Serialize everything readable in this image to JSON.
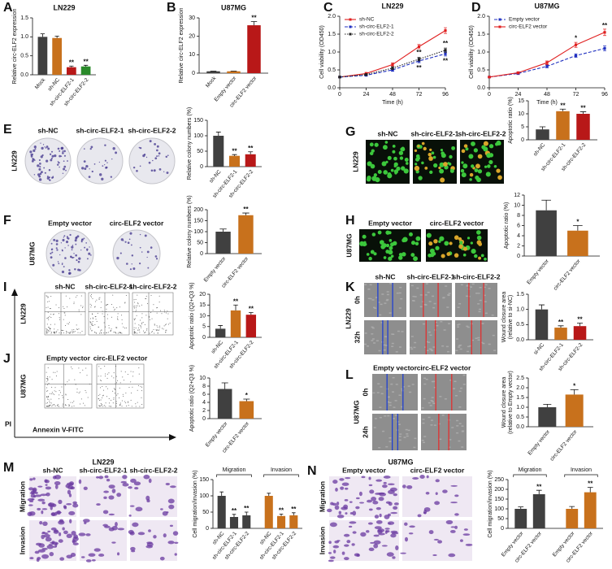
{
  "chart_data": [
    {
      "type": "bar",
      "title": "LN229",
      "ylabel": "Relative circ-ELF2 expression",
      "categories": [
        "Mock",
        "sh-NC",
        "sh-circ-ELF2-1",
        "sh-circ-ELF2-2"
      ],
      "values": [
        1.0,
        0.97,
        0.2,
        0.22
      ],
      "errors": [
        0.08,
        0.05,
        0.03,
        0.03
      ],
      "annotations": [
        null,
        null,
        "**",
        "**"
      ],
      "colors": [
        "#404040",
        "#c8711c",
        "#b81818",
        "#2a8a2a"
      ],
      "ylim": [
        0,
        1.5
      ],
      "yticks": [
        {
          "value": 0,
          "label": "0.0"
        },
        0.5,
        {
          "value": 1,
          "label": "1.0"
        },
        1.5
      ]
    },
    {
      "type": "bar",
      "title": "U87MG",
      "ylabel": "Relative circ-ELF2 expression",
      "categories": [
        "Mock",
        "Empty vector",
        "circ-ELF2 vector"
      ],
      "values": [
        1,
        1,
        26
      ],
      "errors": [
        0.15,
        0.15,
        2
      ],
      "annotations": [
        null,
        null,
        "**"
      ],
      "colors": [
        "#404040",
        "#c8711c",
        "#b81818"
      ],
      "ylim": [
        0,
        30
      ],
      "yticks": [
        0,
        10,
        20,
        30
      ]
    },
    {
      "type": "line",
      "title": "LN229",
      "xlabel": "Time (h)",
      "ylabel": "Cell viability (OD450)",
      "legend": "upper left",
      "x": [
        0,
        24,
        48,
        72,
        96
      ],
      "xlim": [
        0,
        96
      ],
      "xticks": [
        0,
        24,
        48,
        72,
        96
      ],
      "ylim": [
        0,
        2
      ],
      "yticks": [
        {
          "value": 0,
          "label": "0.0"
        },
        0.5,
        {
          "value": 1,
          "label": "1.0"
        },
        1.5,
        {
          "value": 2,
          "label": "2.0"
        }
      ],
      "series": [
        {
          "name": "sh-NC",
          "color": "#e02020",
          "linestyle": "solid",
          "values": [
            0.3,
            0.4,
            0.65,
            1.15,
            1.6
          ],
          "errors": [
            0.02,
            0.03,
            0.05,
            0.06,
            0.08
          ]
        },
        {
          "name": "sh-circ-ELF2-1",
          "color": "#2030c0",
          "linestyle": "dashed",
          "values": [
            0.3,
            0.35,
            0.5,
            0.75,
            0.95
          ],
          "errors": [
            0.02,
            0.02,
            0.04,
            0.05,
            0.06
          ],
          "annotations": [
            null,
            null,
            null,
            "**",
            "**"
          ]
        },
        {
          "name": "sh-circ-ELF2-2",
          "color": "#222222",
          "linestyle": "dotted",
          "values": [
            0.3,
            0.37,
            0.55,
            0.8,
            1.05
          ],
          "errors": [
            0.02,
            0.02,
            0.04,
            0.05,
            0.06
          ],
          "annotations": [
            null,
            null,
            null,
            "**",
            "**"
          ]
        }
      ]
    },
    {
      "type": "line",
      "title": "U87MG",
      "xlabel": "Time (h)",
      "ylabel": "Cell viability (OD450)",
      "legend": "upper left",
      "x": [
        0,
        24,
        48,
        72,
        96
      ],
      "xlim": [
        0,
        96
      ],
      "xticks": [
        0,
        24,
        48,
        72,
        96
      ],
      "ylim": [
        0,
        2
      ],
      "yticks": [
        {
          "value": 0,
          "label": "0.0"
        },
        0.5,
        {
          "value": 1,
          "label": "1.0"
        },
        1.5,
        {
          "value": 2,
          "label": "2.0"
        }
      ],
      "series": [
        {
          "name": "Empty vector",
          "color": "#2030c0",
          "linestyle": "dashed",
          "values": [
            0.3,
            0.4,
            0.6,
            0.9,
            1.1
          ],
          "errors": [
            0.02,
            0.03,
            0.04,
            0.05,
            0.07
          ]
        },
        {
          "name": "circ-ELF2 vector",
          "color": "#e02020",
          "linestyle": "solid",
          "values": [
            0.3,
            0.42,
            0.7,
            1.2,
            1.55
          ],
          "errors": [
            0.02,
            0.03,
            0.05,
            0.07,
            0.09
          ],
          "annotations": [
            null,
            null,
            null,
            "*",
            "**"
          ]
        }
      ]
    },
    {
      "type": "bar",
      "ylabel": "Relative colony numbers (%)",
      "categories": [
        "sh-NC",
        "sh-circ-ELF2-1",
        "sh-circ-ELF2-2"
      ],
      "values": [
        100,
        35,
        40
      ],
      "errors": [
        12,
        4,
        8
      ],
      "annotations": [
        null,
        "**",
        "**"
      ],
      "colors": [
        "#404040",
        "#c8711c",
        "#b81818"
      ],
      "ylim": [
        0,
        150
      ],
      "yticks": [
        0,
        50,
        100,
        150
      ]
    },
    {
      "type": "bar",
      "ylabel": "Relative colony numbers (%)",
      "categories": [
        "Empty vector",
        "circ-ELF2 vector"
      ],
      "values": [
        100,
        175
      ],
      "errors": [
        12,
        10
      ],
      "annotations": [
        null,
        "**"
      ],
      "colors": [
        "#404040",
        "#c8711c"
      ],
      "ylim": [
        0,
        200
      ],
      "yticks": [
        0,
        50,
        100,
        150,
        200
      ]
    },
    {
      "type": "bar",
      "ylabel": "Apoptotic ratio (%)",
      "categories": [
        "sh-NC",
        "sh-circ-ELF2-1",
        "sh-circ-ELF2-2"
      ],
      "values": [
        4,
        11,
        10
      ],
      "errors": [
        1,
        0.8,
        0.8
      ],
      "annotations": [
        null,
        "**",
        "**"
      ],
      "colors": [
        "#404040",
        "#c8711c",
        "#b81818"
      ],
      "ylim": [
        0,
        15
      ],
      "yticks": [
        0,
        5,
        10,
        15
      ]
    },
    {
      "type": "bar",
      "ylabel": "Apoptotic ratio (%)",
      "categories": [
        "Empty vector",
        "circ-ELF2 vector"
      ],
      "values": [
        9,
        5
      ],
      "errors": [
        2,
        1
      ],
      "annotations": [
        null,
        "*"
      ],
      "colors": [
        "#404040",
        "#c8711c"
      ],
      "ylim": [
        0,
        12
      ],
      "yticks": [
        0,
        2,
        4,
        6,
        8,
        10,
        12
      ]
    },
    {
      "type": "bar",
      "ylabel": "Apoptotic ratio (Q2+Q3 %)",
      "categories": [
        "sh-NC",
        "sh-circ-ELF2-1",
        "sh-circ-ELF2-2"
      ],
      "values": [
        4,
        12.5,
        10.5
      ],
      "errors": [
        1.5,
        2.5,
        1
      ],
      "annotations": [
        null,
        "**",
        "**"
      ],
      "colors": [
        "#404040",
        "#c8711c",
        "#b81818"
      ],
      "ylim": [
        0,
        20
      ],
      "yticks": [
        0,
        5,
        10,
        15,
        20
      ]
    },
    {
      "type": "bar",
      "ylabel": "Apoptotic ratio (Q2+Q3 %)",
      "categories": [
        "Empty vector",
        "circ-ELF2 vector"
      ],
      "values": [
        7.3,
        4.3
      ],
      "errors": [
        1.5,
        0.5
      ],
      "annotations": [
        null,
        "*"
      ],
      "colors": [
        "#404040",
        "#c8711c"
      ],
      "ylim": [
        0,
        10
      ],
      "yticks": [
        0,
        2,
        4,
        6,
        8,
        10
      ]
    },
    {
      "type": "bar",
      "ylabel": [
        "Wound closure area",
        "(relative to si-NC)"
      ],
      "categories": [
        "si-NC",
        "sh-circ-ELF2-1",
        "sh-circ-ELF2-2"
      ],
      "values": [
        1.0,
        0.4,
        0.45
      ],
      "errors": [
        0.15,
        0.06,
        0.1
      ],
      "annotations": [
        null,
        "**",
        "**"
      ],
      "colors": [
        "#404040",
        "#c8711c",
        "#b81818"
      ],
      "ylim": [
        0,
        1.5
      ],
      "yticks": [
        {
          "value": 0,
          "label": "0.0"
        },
        0.5,
        {
          "value": 1,
          "label": "1.0"
        },
        1.5
      ]
    },
    {
      "type": "bar",
      "ylabel": [
        "Wound closure area",
        "(relative to Empty vector)"
      ],
      "categories": [
        "Empty vector",
        "circ-ELF2 vector"
      ],
      "values": [
        1.0,
        1.65
      ],
      "errors": [
        0.15,
        0.25
      ],
      "annotations": [
        null,
        "*"
      ],
      "colors": [
        "#404040",
        "#c8711c"
      ],
      "ylim": [
        0,
        2.5
      ],
      "yticks": [
        {
          "value": 0,
          "label": "0.0"
        },
        0.5,
        {
          "value": 1,
          "label": "1.0"
        },
        1.5,
        {
          "value": 2,
          "label": "2.0"
        },
        2.5
      ]
    },
    {
      "type": "grouped_bar",
      "ylabel": "Cell migration/invasion (%)",
      "groups": [
        {
          "name": "Migration",
          "color": "#404040",
          "categories": [
            "sh-NC",
            "sh-circ-ELF2-1",
            "sh-circ-ELF2-2"
          ],
          "values": [
            100,
            35,
            40
          ],
          "errors": [
            12,
            8,
            10
          ],
          "annotations": [
            null,
            "**",
            "**"
          ]
        },
        {
          "name": "Invasion",
          "color": "#c8711c",
          "categories": [
            "sh-NC",
            "sh-circ-ELF2-1",
            "sh-circ-ELF2-2"
          ],
          "values": [
            100,
            38,
            40
          ],
          "errors": [
            8,
            6,
            8
          ],
          "annotations": [
            null,
            "**",
            "**"
          ]
        }
      ],
      "ylim": [
        0,
        150
      ],
      "yticks": [
        0,
        50,
        100,
        150
      ]
    },
    {
      "type": "grouped_bar",
      "ylabel": "Cell migration/invasion (%)",
      "groups": [
        {
          "name": "Migration",
          "color": "#404040",
          "categories": [
            "Empty vector",
            "circ-ELF2 vector"
          ],
          "values": [
            100,
            175
          ],
          "errors": [
            10,
            20
          ],
          "annotations": [
            null,
            "**"
          ]
        },
        {
          "name": "Invasion",
          "color": "#c8711c",
          "categories": [
            "Empty vector",
            "circ-ELF2 vector"
          ],
          "values": [
            100,
            185
          ],
          "errors": [
            12,
            25
          ],
          "annotations": [
            null,
            "**"
          ]
        }
      ],
      "ylim": [
        0,
        250
      ],
      "yticks": [
        0,
        50,
        100,
        150,
        200,
        250
      ]
    }
  ],
  "figure": {
    "letters": [
      "A",
      "B",
      "C",
      "D",
      "E",
      "F",
      "G",
      "H",
      "I",
      "J",
      "K",
      "L",
      "M",
      "N"
    ],
    "E": {
      "cols": [
        "sh-NC",
        "sh-circ-ELF2-1",
        "sh-circ-ELF2-2"
      ],
      "row": "LN229"
    },
    "F": {
      "cols": [
        "Empty vector",
        "circ-ELF2 vector"
      ],
      "row": "U87MG"
    },
    "G": {
      "cols": [
        "sh-NC",
        "sh-circ-ELF2-1",
        "sh-circ-ELF2-2"
      ],
      "row": "LN229"
    },
    "H": {
      "cols": [
        "Empty vector",
        "circ-ELF2 vector"
      ],
      "row": "U87MG"
    },
    "I": {
      "cols": [
        "sh-NC",
        "sh-circ-ELF2-1",
        "sh-circ-ELF2-2"
      ],
      "row": "LN229"
    },
    "J": {
      "cols": [
        "Empty vector",
        "circ-ELF2 vector"
      ],
      "row": "U87MG",
      "y_axis": "PI",
      "x_axis": "Annexin V-FITC"
    },
    "K": {
      "cols": [
        "sh-NC",
        "sh-circ-ELF2-1",
        "sh-circ-ELF2-2"
      ],
      "rows": [
        "0h",
        "32h"
      ],
      "row": "LN229"
    },
    "L": {
      "cols": [
        "Empty vector",
        "circ-ELF2 vector"
      ],
      "rows": [
        "0h",
        "24h"
      ],
      "row": "U87MG"
    },
    "M": {
      "title": "LN229",
      "cols": [
        "sh-NC",
        "sh-circ-ELF2-1",
        "sh-circ-ELF2-2"
      ],
      "rows": [
        "Migration",
        "Invasion"
      ]
    },
    "N": {
      "title": "U87MG",
      "cols": [
        "Empty vector",
        "circ-ELF2 vector"
      ],
      "rows": [
        "Migration",
        "Invasion"
      ]
    }
  }
}
